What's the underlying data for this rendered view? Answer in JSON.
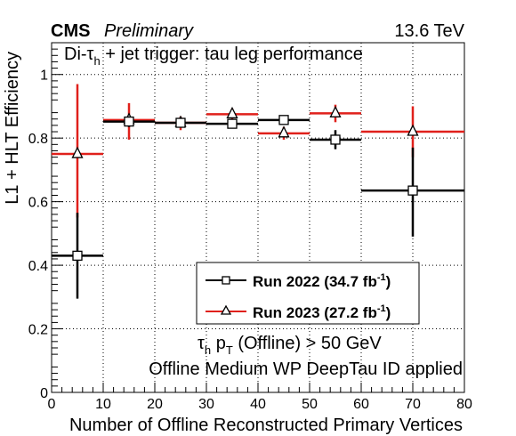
{
  "header": {
    "experiment": "CMS",
    "status": "Preliminary",
    "energy": "13.6 TeV"
  },
  "chart_data": {
    "type": "scatter",
    "title": "Di-τh + jet trigger: tau leg performance",
    "title_parts": {
      "pre": "Di-τ",
      "sub": "h",
      "post": " + jet trigger: tau leg performance"
    },
    "xlabel": "Number of Offline Reconstructed Primary Vertices",
    "ylabel": "L1 + HLT Efficiency",
    "xlim": [
      0,
      80
    ],
    "ylim": [
      0,
      1.1
    ],
    "xticks": [
      0,
      10,
      20,
      30,
      40,
      50,
      60,
      70,
      80
    ],
    "yticks": [
      0,
      0.2,
      0.4,
      0.6,
      0.8,
      1
    ],
    "ytick_labels": [
      "0",
      "0.2",
      "0.4",
      "0.6",
      "0.8",
      "1"
    ],
    "grid": true,
    "legend_position": "center-right",
    "series": [
      {
        "name": "Run 2022 (34.7 fb-1)",
        "legend": {
          "pre": "Run 2022 (34.7 fb",
          "sup": "-1",
          "post": ")"
        },
        "color": "#000000",
        "marker": "open-square",
        "points": [
          {
            "x": 5,
            "xlow": 0,
            "xhigh": 10,
            "y": 0.43,
            "ylow": 0.295,
            "yhigh": 0.565
          },
          {
            "x": 15,
            "xlow": 10,
            "xhigh": 20,
            "y": 0.852,
            "ylow": 0.835,
            "yhigh": 0.868
          },
          {
            "x": 25,
            "xlow": 20,
            "xhigh": 30,
            "y": 0.848,
            "ylow": 0.838,
            "yhigh": 0.857
          },
          {
            "x": 35,
            "xlow": 30,
            "xhigh": 40,
            "y": 0.845,
            "ylow": 0.837,
            "yhigh": 0.853
          },
          {
            "x": 45,
            "xlow": 40,
            "xhigh": 50,
            "y": 0.857,
            "ylow": 0.846,
            "yhigh": 0.868
          },
          {
            "x": 55,
            "xlow": 50,
            "xhigh": 60,
            "y": 0.795,
            "ylow": 0.765,
            "yhigh": 0.825
          },
          {
            "x": 70,
            "xlow": 60,
            "xhigh": 80,
            "y": 0.635,
            "ylow": 0.49,
            "yhigh": 0.77
          }
        ]
      },
      {
        "name": "Run 2023 (27.2 fb-1)",
        "legend": {
          "pre": "Run 2023 (27.2 fb",
          "sup": "-1",
          "post": ")"
        },
        "color": "#e0201b",
        "marker": "open-triangle",
        "points": [
          {
            "x": 5,
            "xlow": 0,
            "xhigh": 10,
            "y": 0.75,
            "ylow": 0.55,
            "yhigh": 0.97
          },
          {
            "x": 15,
            "xlow": 10,
            "xhigh": 20,
            "y": 0.857,
            "ylow": 0.795,
            "yhigh": 0.91
          },
          {
            "x": 25,
            "xlow": 20,
            "xhigh": 30,
            "y": 0.848,
            "ylow": 0.825,
            "yhigh": 0.868
          },
          {
            "x": 35,
            "xlow": 30,
            "xhigh": 40,
            "y": 0.875,
            "ylow": 0.855,
            "yhigh": 0.893
          },
          {
            "x": 45,
            "xlow": 40,
            "xhigh": 50,
            "y": 0.815,
            "ylow": 0.795,
            "yhigh": 0.835
          },
          {
            "x": 55,
            "xlow": 50,
            "xhigh": 60,
            "y": 0.878,
            "ylow": 0.85,
            "yhigh": 0.905
          },
          {
            "x": 70,
            "xlow": 60,
            "xhigh": 80,
            "y": 0.82,
            "ylow": 0.74,
            "yhigh": 0.9
          }
        ]
      }
    ],
    "annotations": [
      {
        "pre": "τ",
        "sub": "h",
        "mid": " p",
        "sub2": "T",
        "post": " (Offline) > 50 GeV"
      },
      {
        "text": "Offline Medium WP DeepTau ID applied"
      }
    ]
  }
}
